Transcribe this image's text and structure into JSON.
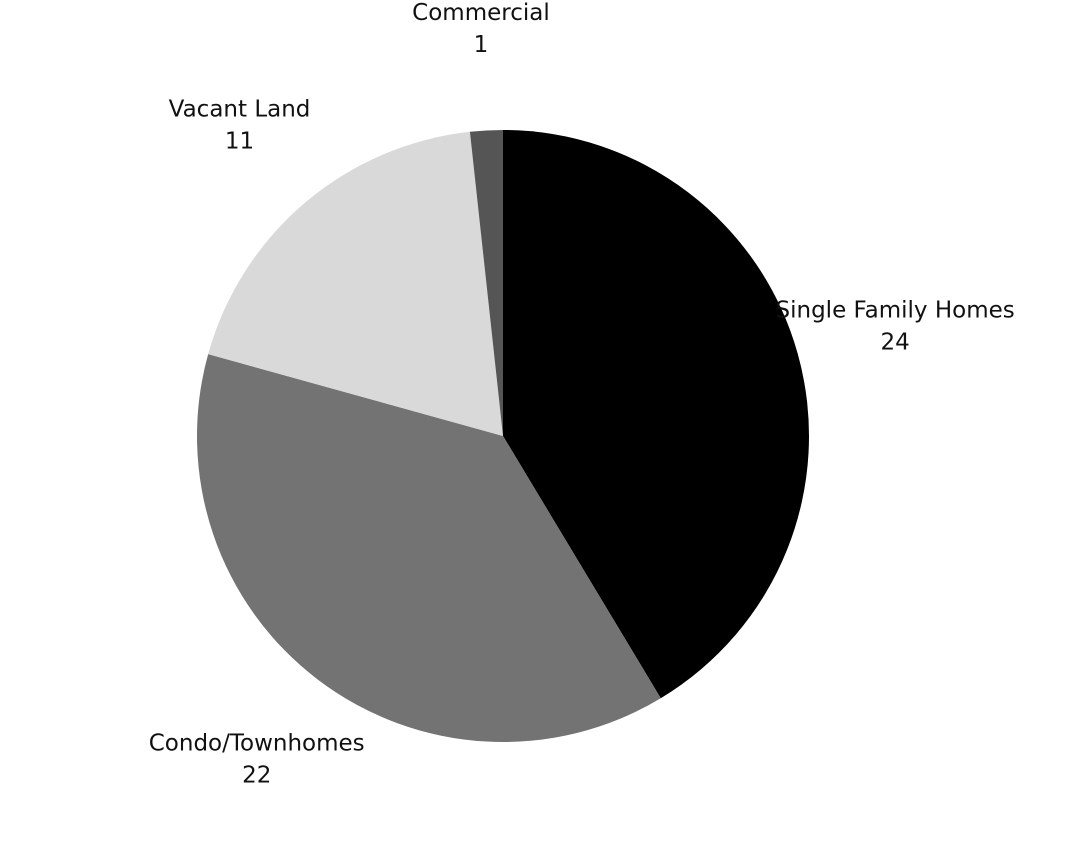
{
  "chart_data": {
    "type": "pie",
    "categories": [
      "Single Family Homes",
      "Condo/Townhomes",
      "Vacant Land",
      "Commercial"
    ],
    "values": [
      24,
      22,
      11,
      1
    ],
    "colors": [
      "#000000",
      "#737373",
      "#d9d9d9",
      "#555555"
    ]
  }
}
